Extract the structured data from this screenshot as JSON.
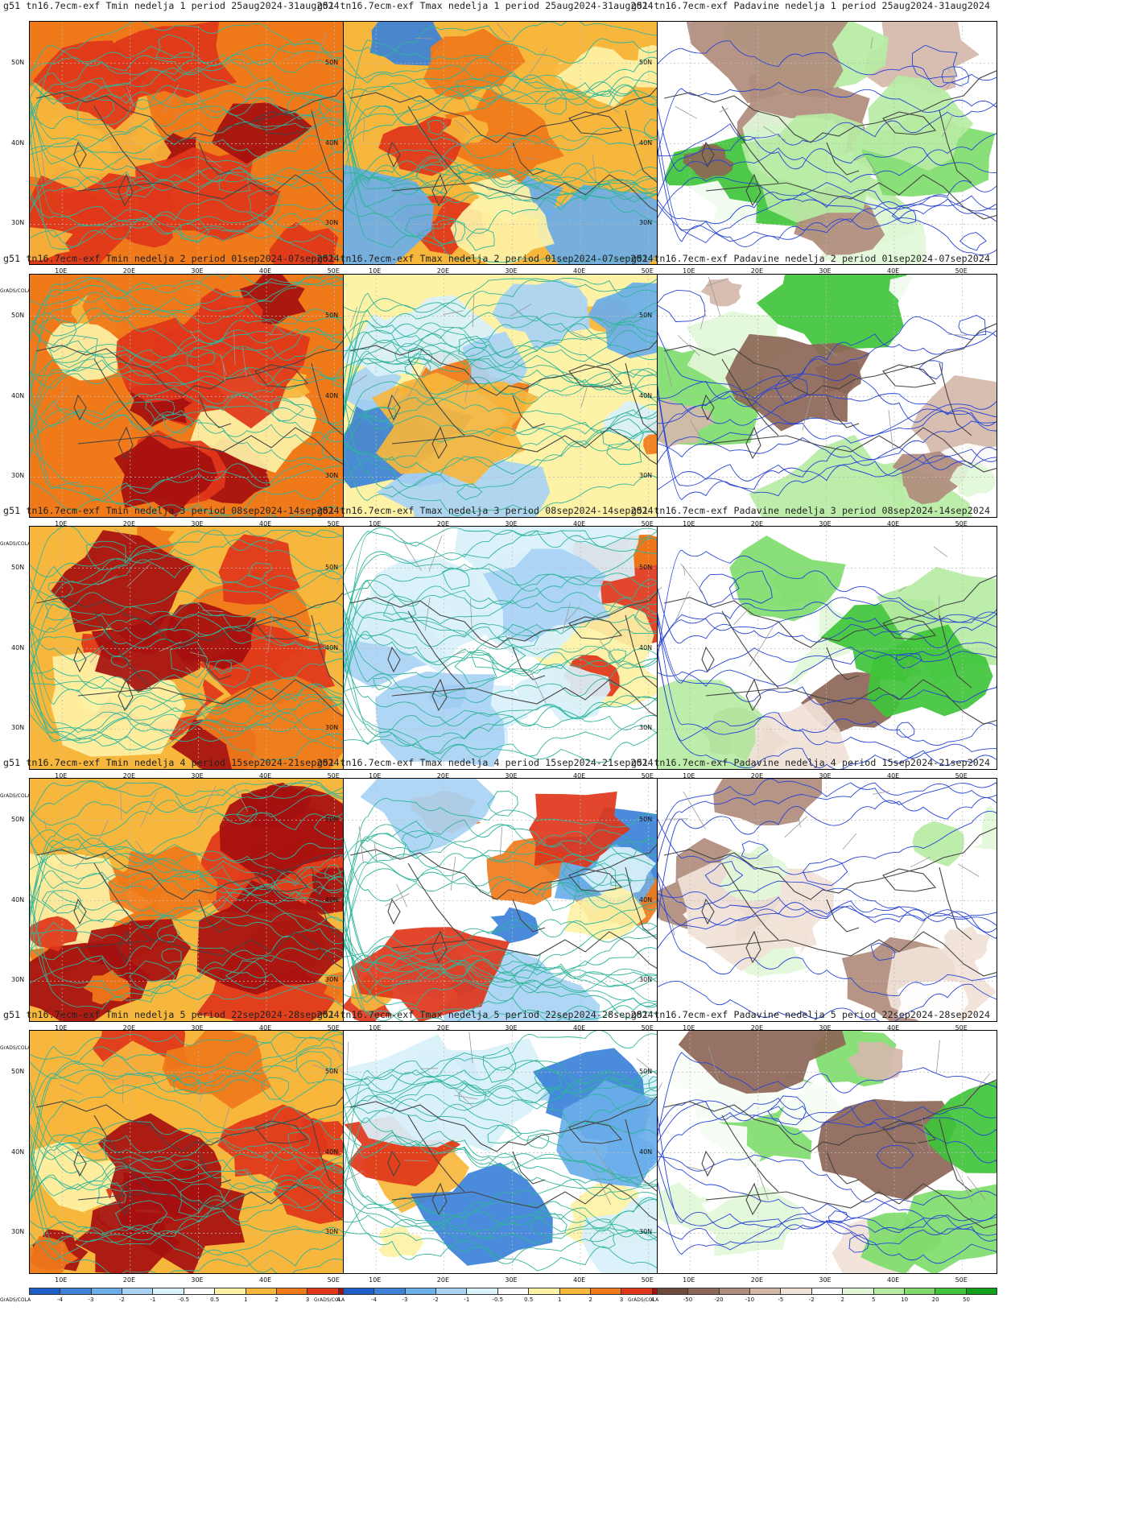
{
  "grid": {
    "rows": [
      {
        "tmin": "g51  tn16.7ecm-exf Tmin  nedelja 1 period 25aug2024-31aug2024",
        "tmax": "g51  tn16.7ecm-exf Tmax  nedelja 1 period 25aug2024-31aug2024",
        "pad": "g51  tn16.7ecm-exf Padavine nedelja 1 period 25aug2024-31aug2024",
        "tmin_level": 0.85,
        "tmax_level": 0.55,
        "pad_level": 0.35
      },
      {
        "tmin": "g51  tn16.7ecm-exf Tmin  nedelja 2 period 01sep2024-07sep2024",
        "tmax": "g51  tn16.7ecm-exf Tmax  nedelja 2 period 01sep2024-07sep2024",
        "pad": "g51  tn16.7ecm-exf Padavine nedelja 2 period 01sep2024-07sep2024",
        "tmin_level": 0.8,
        "tmax_level": 0.45,
        "pad_level": 0.45
      },
      {
        "tmin": "g51  tn16.7ecm-exf Tmin  nedelja 3 period 08sep2024-14sep2024",
        "tmax": "g51  tn16.7ecm-exf Tmax  nedelja 3 period 08sep2024-14sep2024",
        "pad": "g51  tn16.7ecm-exf Padavine nedelja 3 period 08sep2024-14sep2024",
        "tmin_level": 0.65,
        "tmax_level": 0.3,
        "pad_level": 0.5
      },
      {
        "tmin": "g51  tn16.7ecm-exf Tmin  nedelja 4 period 15sep2024-21sep2024",
        "tmax": "g51  tn16.7ecm-exf Tmax  nedelja 4 period 15sep2024-21sep2024",
        "pad": "g51  tn16.7ecm-exf Padavine nedelja 4 period 15sep2024-21sep2024",
        "tmin_level": 0.7,
        "tmax_level": 0.35,
        "pad_level": 0.5
      },
      {
        "tmin": "g51  tn16.7ecm-exf Tmin  nedelja 5 period 22sep2024-28sep2024",
        "tmax": "g51  tn16.7ecm-exf Tmax  nedelja 5 period 22sep2024-28sep2024",
        "pad": "g51  tn16.7ecm-exf Padavine nedelja 5 period 22sep2024-28sep2024",
        "tmin_level": 0.7,
        "tmax_level": 0.35,
        "pad_level": 0.45
      }
    ]
  },
  "axes": {
    "lat_labels": [
      "50N",
      "40N",
      "30N"
    ],
    "lon_labels": [
      "10E",
      "20E",
      "30E",
      "40E",
      "50E"
    ]
  },
  "credit": "GrADS/COLA",
  "temp_scale": {
    "labels": [
      "-4",
      "-3",
      "-2",
      "-1",
      "-0.5",
      "0.5",
      "1",
      "2",
      "3",
      "4"
    ],
    "colors": [
      "#1d5fc6",
      "#3b82d8",
      "#6aaeea",
      "#a9d3f5",
      "#d9f1fb",
      "#ffffff",
      "#fdf2a6",
      "#f7b63c",
      "#f07a1a",
      "#e0361a",
      "#a50f0f"
    ]
  },
  "precip_scale": {
    "labels": [
      "-50",
      "-20",
      "-10",
      "-5",
      "-2",
      "2",
      "5",
      "10",
      "20",
      "50"
    ],
    "colors": [
      "#6e4a3a",
      "#8c6656",
      "#b08c7c",
      "#d4b8aa",
      "#f1e2d8",
      "#ffffff",
      "#e2f7d8",
      "#b7eca4",
      "#7fdc6c",
      "#3fc43a",
      "#12a21a"
    ]
  },
  "map_colors": {
    "land_line": "#444444",
    "border_line": "#9a9a9a",
    "temp_contour": "#2fb59a",
    "precip_contour": "#2643d6",
    "grid_line": "#bbbbbb"
  }
}
